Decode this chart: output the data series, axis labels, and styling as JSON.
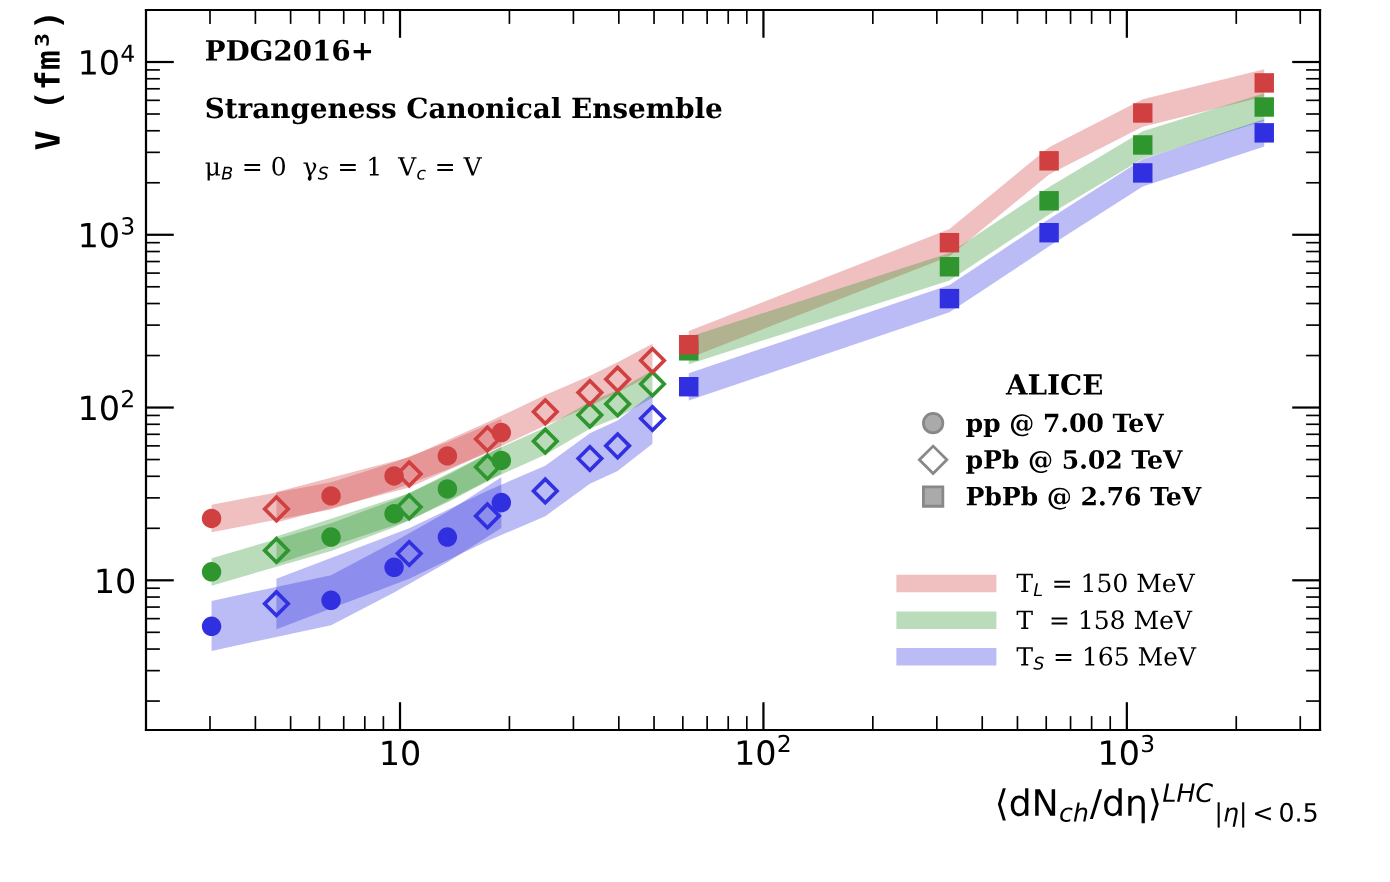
{
  "chart_data": {
    "type": "scatter",
    "title": "PDG2016+",
    "xlabel": "⟨dN$_{ch}$/dη⟩$^{LHC}$$_{|η|<0.5}$",
    "ylabel": "V (fm³)",
    "legend_title": "ALICE",
    "log": "xy",
    "legend": "right",
    "grid": false,
    "xlim": [
      2,
      3400
    ],
    "ylim": [
      1.36,
      20000
    ],
    "xticks": [
      {
        "value": 10,
        "label": "10"
      },
      {
        "value": 100,
        "label": "10$^{2}$"
      },
      {
        "value": 1000,
        "label": "10$^{3}$"
      }
    ],
    "yticks": [
      {
        "value": 10,
        "label": "10"
      },
      {
        "value": 100,
        "label": "10$^{2}$"
      },
      {
        "value": 1000,
        "label": "10$^{3}$"
      },
      {
        "value": 10000,
        "label": "10$^{4}$"
      }
    ],
    "annotations": [
      "Strangeness Canonical Ensemble",
      "μ$_{B}$ = 0  γ$_{S}$ = 1  V$_{c}$ = V",
      "pp @ 7.00 TeV",
      "pPb @ 5.02 TeV",
      "PbPb @ 2.76 TeV"
    ],
    "series": [
      {
        "name": "T$_{L}$ = 150 MeV",
        "color": "#d04040",
        "marker": "circle",
        "x": [
          3.03,
          6.46,
          9.63,
          13.5,
          19.0
        ],
        "values": [
          22.8,
          30.8,
          40.2,
          52.5,
          71.7
        ],
        "lower": [
          19,
          25.7,
          33.5,
          43.8,
          59.8
        ],
        "upper": [
          27.4,
          37,
          48.2,
          63,
          86
        ]
      },
      {
        "name": "T  = 158 MeV",
        "color": "#2f962f",
        "marker": "circle",
        "x": [
          3.03,
          6.46,
          9.63,
          13.5,
          19.0
        ],
        "values": [
          11.2,
          17.8,
          24.3,
          33.8,
          49.4
        ],
        "lower": [
          9.3,
          14.8,
          20.3,
          28.2,
          41.2
        ],
        "upper": [
          13.4,
          21.4,
          29.2,
          40.6,
          59.3
        ]
      },
      {
        "name": "T$_{S}$ = 165 MeV",
        "color": "#3030e0",
        "marker": "circle",
        "x": [
          3.03,
          6.46,
          9.63,
          13.5,
          19.0
        ],
        "values": [
          5.42,
          7.66,
          11.9,
          17.8,
          28.2
        ],
        "lower": [
          3.9,
          5.5,
          8.5,
          12.7,
          20.1
        ],
        "upper": [
          7.6,
          10.7,
          16.7,
          24.9,
          39.5
        ]
      },
      {
        "color": "#d04040",
        "marker": "diamond",
        "x": [
          4.57,
          10.6,
          17.4,
          25.1,
          33.3,
          39.7,
          49.5
        ],
        "values": [
          25.9,
          41.3,
          65.7,
          94.4,
          122,
          146,
          187
        ],
        "lower": [
          21.6,
          34.4,
          54.8,
          78.7,
          102,
          122,
          156
        ],
        "upper": [
          32.4,
          51.6,
          82.1,
          118,
          153,
          183,
          234
        ]
      },
      {
        "color": "#2f962f",
        "marker": "diamond",
        "x": [
          4.57,
          10.6,
          17.4,
          25.1,
          33.3,
          39.7,
          49.5
        ],
        "values": [
          14.9,
          26.6,
          45.2,
          63.9,
          90.4,
          105,
          137
        ],
        "lower": [
          12.4,
          22.2,
          37.7,
          53.3,
          75.3,
          87.5,
          114
        ],
        "upper": [
          17.9,
          31.9,
          54.2,
          76.7,
          108,
          126,
          164
        ]
      },
      {
        "color": "#3030e0",
        "marker": "diamond",
        "x": [
          4.57,
          10.6,
          17.4,
          25.1,
          33.3,
          39.7,
          49.5
        ],
        "values": [
          7.32,
          14.3,
          23.6,
          32.9,
          50.7,
          60,
          86.4
        ],
        "lower": [
          5.2,
          10.2,
          16.9,
          23.5,
          36.2,
          42.9,
          61.7
        ],
        "upper": [
          10.2,
          20,
          33,
          46.1,
          71,
          84,
          121
        ]
      },
      {
        "color": "#d04040",
        "marker": "square",
        "x": [
          62.3,
          325,
          611,
          1106,
          2388
        ],
        "values": [
          231,
          900,
          2680,
          5070,
          7570
        ],
        "lower": [
          193,
          750,
          2233,
          4225,
          6308
        ],
        "upper": [
          277,
          1080,
          3216,
          6084,
          9084
        ]
      },
      {
        "color": "#2f962f",
        "marker": "square",
        "x": [
          62.3,
          325,
          611,
          1106,
          2388
        ],
        "values": [
          213,
          653,
          1573,
          3310,
          5490
        ],
        "lower": [
          178,
          544,
          1311,
          2758,
          4575
        ],
        "upper": [
          256,
          784,
          1888,
          3972,
          6588
        ]
      },
      {
        "color": "#3030e0",
        "marker": "square",
        "x": [
          62.3,
          325,
          611,
          1106,
          2388
        ],
        "values": [
          132,
          427,
          1028,
          2280,
          3890
        ],
        "lower": [
          110,
          356,
          857,
          1900,
          3242
        ],
        "upper": [
          158,
          512,
          1234,
          2736,
          4668
        ]
      }
    ]
  }
}
